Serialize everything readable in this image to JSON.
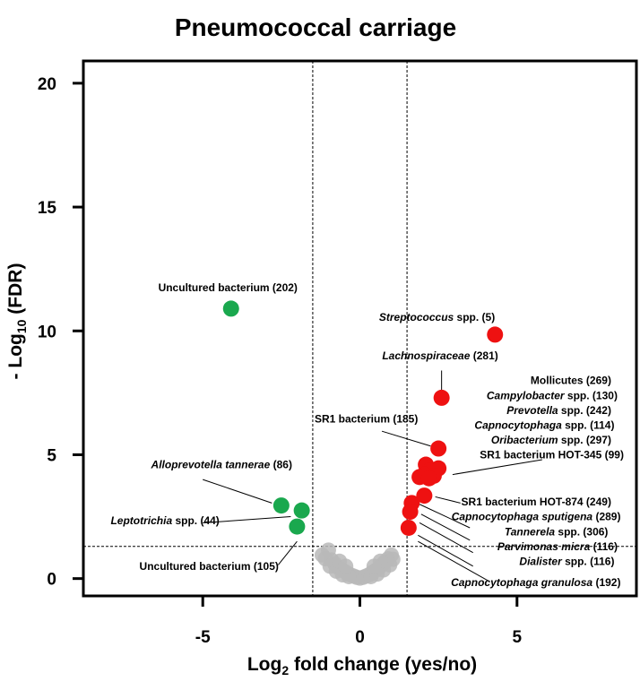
{
  "chart_data": {
    "type": "scatter",
    "title": "Pneumococcal carriage",
    "xlabel": {
      "pre": "Log",
      "sub": "2",
      "post": " fold change (yes/no)"
    },
    "ylabel": {
      "pre": "- Log",
      "sub": "10",
      "post": " (FDR)"
    },
    "xlim": [
      -8.8,
      8.8
    ],
    "ylim": [
      -0.7,
      20.9
    ],
    "x_ticks": [
      -5,
      0,
      5
    ],
    "y_ticks": [
      0,
      5,
      10,
      15,
      20
    ],
    "thresholds": {
      "log2fc": [
        -1.5,
        1.5
      ],
      "neg_log10_fdr": 1.3
    },
    "colors": {
      "up": "#ee1111",
      "down": "#1aa84e",
      "ns": "#b9b9b9"
    },
    "up": [
      {
        "x": 4.3,
        "y": 9.85
      },
      {
        "x": 2.6,
        "y": 7.3
      },
      {
        "x": 2.5,
        "y": 5.25
      },
      {
        "x": 2.1,
        "y": 4.6
      },
      {
        "x": 2.5,
        "y": 4.45
      },
      {
        "x": 2.2,
        "y": 4.35
      },
      {
        "x": 2.05,
        "y": 4.2
      },
      {
        "x": 2.35,
        "y": 4.15
      },
      {
        "x": 1.9,
        "y": 4.1
      },
      {
        "x": 2.2,
        "y": 4.05
      },
      {
        "x": 2.05,
        "y": 3.35
      },
      {
        "x": 1.65,
        "y": 3.05
      },
      {
        "x": 1.6,
        "y": 2.7
      },
      {
        "x": 1.55,
        "y": 2.05
      }
    ],
    "down": [
      {
        "x": -4.1,
        "y": 10.9
      },
      {
        "x": -2.5,
        "y": 2.95
      },
      {
        "x": -1.85,
        "y": 2.75
      },
      {
        "x": -2.0,
        "y": 2.1
      }
    ],
    "ns": [
      {
        "x": -1.2,
        "y": 0.95
      },
      {
        "x": -1.0,
        "y": 1.15
      },
      {
        "x": -0.9,
        "y": 0.75
      },
      {
        "x": -0.8,
        "y": 0.6
      },
      {
        "x": -0.7,
        "y": 0.45
      },
      {
        "x": -0.6,
        "y": 0.38
      },
      {
        "x": -0.5,
        "y": 0.3
      },
      {
        "x": -0.4,
        "y": 0.22
      },
      {
        "x": -0.3,
        "y": 0.15
      },
      {
        "x": -0.2,
        "y": 0.1
      },
      {
        "x": -0.1,
        "y": 0.05
      },
      {
        "x": 0.0,
        "y": 0.02
      },
      {
        "x": 0.1,
        "y": 0.05
      },
      {
        "x": 0.2,
        "y": 0.1
      },
      {
        "x": 0.3,
        "y": 0.16
      },
      {
        "x": 0.4,
        "y": 0.25
      },
      {
        "x": 0.5,
        "y": 0.33
      },
      {
        "x": 0.6,
        "y": 0.42
      },
      {
        "x": 0.7,
        "y": 0.55
      },
      {
        "x": 0.8,
        "y": 0.68
      },
      {
        "x": 0.9,
        "y": 0.8
      },
      {
        "x": 1.0,
        "y": 0.95
      },
      {
        "x": 1.05,
        "y": 0.78
      },
      {
        "x": -1.1,
        "y": 0.8
      },
      {
        "x": -0.95,
        "y": 0.5
      },
      {
        "x": -0.75,
        "y": 0.3
      },
      {
        "x": -0.55,
        "y": 0.15
      },
      {
        "x": -0.35,
        "y": 0.08
      },
      {
        "x": 0.35,
        "y": 0.08
      },
      {
        "x": 0.55,
        "y": 0.18
      },
      {
        "x": 0.75,
        "y": 0.35
      },
      {
        "x": 0.95,
        "y": 0.55
      },
      {
        "x": -0.65,
        "y": 0.7
      },
      {
        "x": 0.65,
        "y": 0.7
      },
      {
        "x": -0.45,
        "y": 0.5
      },
      {
        "x": 0.45,
        "y": 0.5
      }
    ],
    "annotations": [
      {
        "segs": [
          [
            "Uncultured bacterium (202)",
            false
          ]
        ],
        "x": -4.2,
        "y": 11.6,
        "anchor": "middle"
      },
      {
        "segs": [
          [
            "Streptococcus",
            true
          ],
          [
            " spp. (5)",
            false
          ]
        ],
        "x": 4.3,
        "y": 10.4,
        "anchor": "end"
      },
      {
        "segs": [
          [
            "Lachnospiraceae",
            true
          ],
          [
            " (281)",
            false
          ]
        ],
        "x": 4.4,
        "y": 8.85,
        "anchor": "end"
      },
      {
        "segs": [
          [
            "Mollicutes (269)",
            false
          ]
        ],
        "x": 8.0,
        "y": 7.85,
        "anchor": "end"
      },
      {
        "segs": [
          [
            "Campylobacter",
            true
          ],
          [
            " spp. (130)",
            false
          ]
        ],
        "x": 8.2,
        "y": 7.25,
        "anchor": "end"
      },
      {
        "segs": [
          [
            "Prevotella",
            true
          ],
          [
            " spp. (242)",
            false
          ]
        ],
        "x": 8.0,
        "y": 6.65,
        "anchor": "end"
      },
      {
        "segs": [
          [
            "Capnocytophaga",
            true
          ],
          [
            " spp. (114)",
            false
          ]
        ],
        "x": 8.1,
        "y": 6.05,
        "anchor": "end"
      },
      {
        "segs": [
          [
            "Oribacterium",
            true
          ],
          [
            " spp. (297)",
            false
          ]
        ],
        "x": 8.0,
        "y": 5.45,
        "anchor": "end"
      },
      {
        "segs": [
          [
            "SR1 bacterium HOT-345 (99)",
            false
          ]
        ],
        "x": 8.4,
        "y": 4.85,
        "anchor": "end"
      },
      {
        "segs": [
          [
            "SR1 bacterium (185)",
            false
          ]
        ],
        "x": 1.85,
        "y": 6.3,
        "anchor": "end"
      },
      {
        "segs": [
          [
            "Alloprevotella tannerae",
            true
          ],
          [
            " (86)",
            false
          ]
        ],
        "x": -4.4,
        "y": 4.45,
        "anchor": "middle"
      },
      {
        "segs": [
          [
            "Leptotrichia",
            true
          ],
          [
            " spp. (44)",
            false
          ]
        ],
        "x": -6.2,
        "y": 2.2,
        "anchor": "middle"
      },
      {
        "segs": [
          [
            "Uncultured bacterium (105)",
            false
          ]
        ],
        "x": -4.8,
        "y": 0.35,
        "anchor": "middle"
      },
      {
        "segs": [
          [
            "SR1 bacterium HOT-874 (249)",
            false
          ]
        ],
        "x": 8.0,
        "y": 2.95,
        "anchor": "end"
      },
      {
        "segs": [
          [
            "Capnocytophaga sputigena",
            true
          ],
          [
            " (289)",
            false
          ]
        ],
        "x": 8.3,
        "y": 2.35,
        "anchor": "end"
      },
      {
        "segs": [
          [
            "Tannerela",
            true
          ],
          [
            " spp. (306)",
            false
          ]
        ],
        "x": 7.9,
        "y": 1.75,
        "anchor": "end"
      },
      {
        "segs": [
          [
            "Parvimonas micra",
            true
          ],
          [
            " (116)",
            false
          ]
        ],
        "x": 8.2,
        "y": 1.15,
        "anchor": "end"
      },
      {
        "segs": [
          [
            "Dialister",
            true
          ],
          [
            " spp. (116)",
            false
          ]
        ],
        "x": 8.1,
        "y": 0.55,
        "anchor": "end"
      },
      {
        "segs": [
          [
            "Capnocytophaga granulosa",
            true
          ],
          [
            " (192)",
            false
          ]
        ],
        "x": 8.3,
        "y": -0.3,
        "anchor": "end"
      }
    ],
    "leaders": [
      [
        2.6,
        8.4,
        2.6,
        7.6
      ],
      [
        0.7,
        5.95,
        2.25,
        5.35
      ],
      [
        5.8,
        4.8,
        2.95,
        4.2
      ],
      [
        -5.0,
        4.0,
        -2.8,
        3.05
      ],
      [
        -5.0,
        2.25,
        -2.2,
        2.5
      ],
      [
        -2.6,
        0.55,
        -2.0,
        1.5
      ],
      [
        3.2,
        3.05,
        2.4,
        3.3
      ],
      [
        3.5,
        2.05,
        1.9,
        3.0
      ],
      [
        3.5,
        1.55,
        1.95,
        2.6
      ],
      [
        3.6,
        1.05,
        1.9,
        2.25
      ],
      [
        3.6,
        0.5,
        1.85,
        1.75
      ],
      [
        4.1,
        -0.1,
        1.85,
        1.5
      ]
    ]
  }
}
